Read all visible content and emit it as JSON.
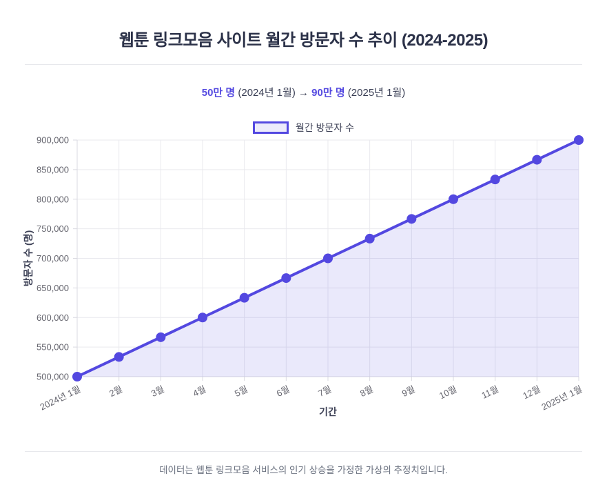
{
  "page": {
    "title": "웹툰 링크모음 사이트 월간 방문자 수 추이 (2024-2025)",
    "footer_note": "데이터는 웹툰 링크모음 서비스의 인기 상승을 가정한 가상의 추정치입니다."
  },
  "subtitle": {
    "start_value": "50만 명",
    "mid_text": " (2024년 1월) → ",
    "end_value": "90만 명",
    "end_text": " (2025년 1월)"
  },
  "legend": {
    "label": "월간 방문자 수"
  },
  "colors": {
    "accent": "#5348e0",
    "area_fill": "rgba(83, 72, 224, 0.12)",
    "grid": "#e9e9ee",
    "axis": "#d9d9e0",
    "title": "#2b3148",
    "tick_text": "#66666f"
  },
  "chart_data": {
    "type": "line",
    "title": "웹툰 링크모음 사이트 월간 방문자 수 추이 (2024-2025)",
    "xlabel": "기간",
    "ylabel": "방문자 수 (명)",
    "categories": [
      "2024년 1월",
      "2월",
      "3월",
      "4월",
      "5월",
      "6월",
      "7월",
      "8월",
      "9월",
      "10월",
      "11월",
      "12월",
      "2025년 1월"
    ],
    "series": [
      {
        "name": "월간 방문자 수",
        "values": [
          500000,
          533333,
          566667,
          600000,
          633333,
          666667,
          700000,
          733333,
          766667,
          800000,
          833333,
          866667,
          900000
        ]
      }
    ],
    "ylim": [
      500000,
      900000
    ],
    "ytick_step": 50000,
    "grid": true,
    "area_fill": true,
    "legend_position": "top-center",
    "point_radius": 7,
    "line_width": 4
  }
}
